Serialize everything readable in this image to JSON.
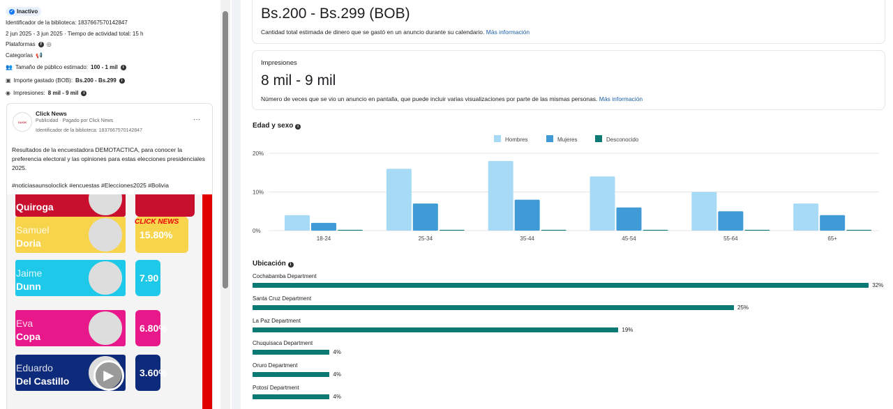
{
  "left": {
    "status": "Inactivo",
    "library_id": "Identificador de la biblioteca: 1837667570142847",
    "dates": "2 jun 2025 - 3 jun 2025 · Tiempo de actividad total: 15 h",
    "platforms_label": "Plataformas",
    "categories_label": "Categorías",
    "audience_label": "Tamaño de público estimado:",
    "audience_value": "100 - 1 mil",
    "spend_label": "Importe gastado (BOB):",
    "spend_value": "Bs.200 - Bs.299",
    "impressions_label": "Impresiones:",
    "impressions_value": "8 mil - 9 mil",
    "ad": {
      "page_name": "Click News",
      "sponsored": "Publicidad · Pagado por Click News",
      "library_id": "Identificador de la biblioteca: 1837667570142847",
      "body": "Resultados de la encuestadora DEMOTACTICA, para conocer la preferencia electoral y las opiniones para estas elecciones presidenciales 2025.",
      "hashtags": "#noticiasaunsoloclick #encuestas #Elecciones2025 #Bolivia",
      "media_logo": "CLICK NEWS",
      "candidates": [
        {
          "first": "",
          "last": "Quiroga",
          "pct": "",
          "color": "#c8102e"
        },
        {
          "first": "Samuel",
          "last": "Doria",
          "pct": "15.80%",
          "color": "#f7d44c"
        },
        {
          "first": "Jaime",
          "last": "Dunn",
          "pct": "7.90",
          "color": "#1ec8e8"
        },
        {
          "first": "Eva",
          "last": "Copa",
          "pct": "6.80%",
          "color": "#e8178a"
        },
        {
          "first": "Eduardo",
          "last": "Del Castillo",
          "pct": "3.60%",
          "color": "#0e2a7a"
        }
      ]
    }
  },
  "spend_card": {
    "value": "Bs.200 - Bs.299 (BOB)",
    "desc": "Cantidad total estimada de dinero que se gastó en un anuncio durante su calendario.",
    "link": "Más información"
  },
  "impressions_card": {
    "title": "Impresiones",
    "value": "8 mil - 9 mil",
    "desc": "Número de veces que se vio un anuncio en pantalla, que puede incluir varias visualizaciones por parte de las mismas personas.",
    "link": "Más información"
  },
  "chart_data": [
    {
      "type": "bar",
      "title": "Edad y sexo",
      "categories": [
        "18-24",
        "25-34",
        "35-44",
        "45-54",
        "55-64",
        "65+"
      ],
      "series": [
        {
          "name": "Hombres",
          "values": [
            4,
            16,
            18,
            14,
            10,
            7
          ],
          "color": "#a6daf5"
        },
        {
          "name": "Mujeres",
          "values": [
            2,
            7,
            8,
            6,
            5,
            4
          ],
          "color": "#3f9ad6"
        },
        {
          "name": "Desconocido",
          "values": [
            0.2,
            0.2,
            0.2,
            0.2,
            0.2,
            0.2
          ],
          "color": "#0b7a75"
        }
      ],
      "yticks": [
        "0%",
        "10%",
        "20%"
      ],
      "ylim": [
        0,
        20
      ],
      "grid": true,
      "legend": "top-center"
    },
    {
      "type": "bar",
      "orientation": "horizontal",
      "title": "Ubicación",
      "categories": [
        "Cochabamba Department",
        "Santa Cruz Department",
        "La Paz Department",
        "Chuquisaca Department",
        "Oruro Department",
        "Potosí Department"
      ],
      "values": [
        32,
        25,
        19,
        4,
        4,
        4
      ],
      "labels": [
        "32%",
        "25%",
        "19%",
        "4%",
        "4%",
        "4%"
      ],
      "color": "#0b7a75"
    }
  ]
}
